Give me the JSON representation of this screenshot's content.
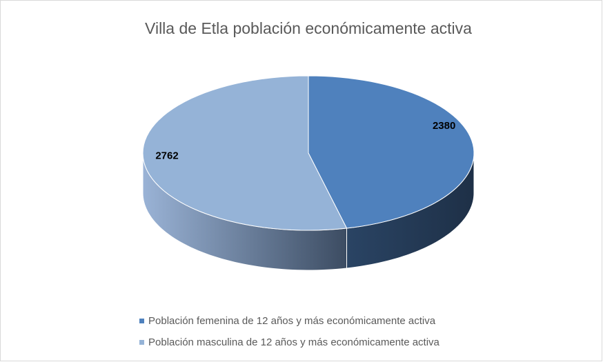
{
  "chart_data": {
    "type": "pie",
    "title": "Villa de Etla población económicamente activa",
    "categories": [
      "Población femenina de 12 años y más económicamente activa",
      "Población masculina de 12 años y más económicamente activa"
    ],
    "values": [
      2380,
      2762
    ],
    "colors": [
      "#4f81bd",
      "#95b3d7"
    ],
    "legend": "bottom"
  }
}
